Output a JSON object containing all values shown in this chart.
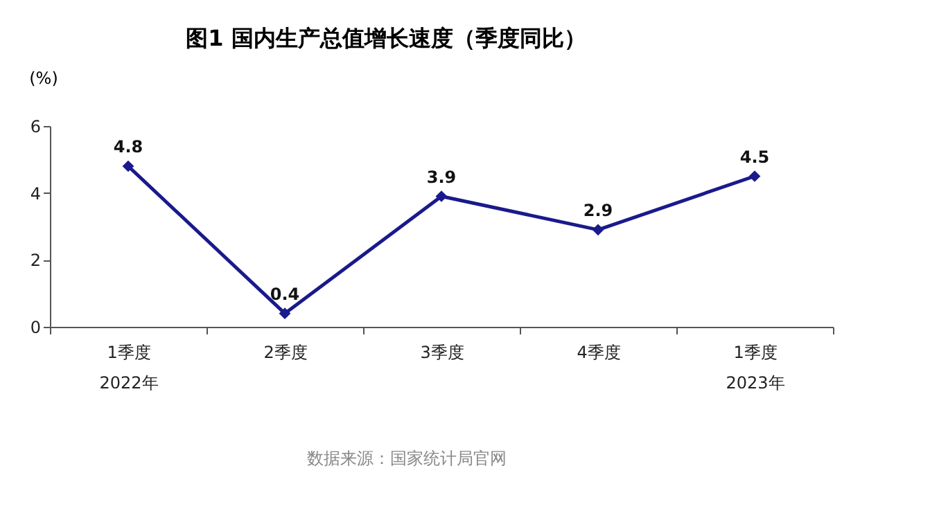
{
  "chart_data": {
    "type": "line",
    "title": "图1  国内生产总值增长速度（季度同比）",
    "ylabel": "(%)",
    "categories": [
      "1季度\n2022年",
      "2季度",
      "3季度",
      "4季度",
      "1季度\n2023年"
    ],
    "values": [
      4.8,
      0.4,
      3.9,
      2.9,
      4.5
    ],
    "color": "#1a1a8c",
    "ylim": [
      0,
      6
    ],
    "yticks": [
      0,
      2,
      4,
      6
    ],
    "grid": false,
    "data_labels": true,
    "marker": "diamond",
    "line_style": "solid",
    "annotations": [
      "数据来源：国家统计局官网"
    ]
  }
}
